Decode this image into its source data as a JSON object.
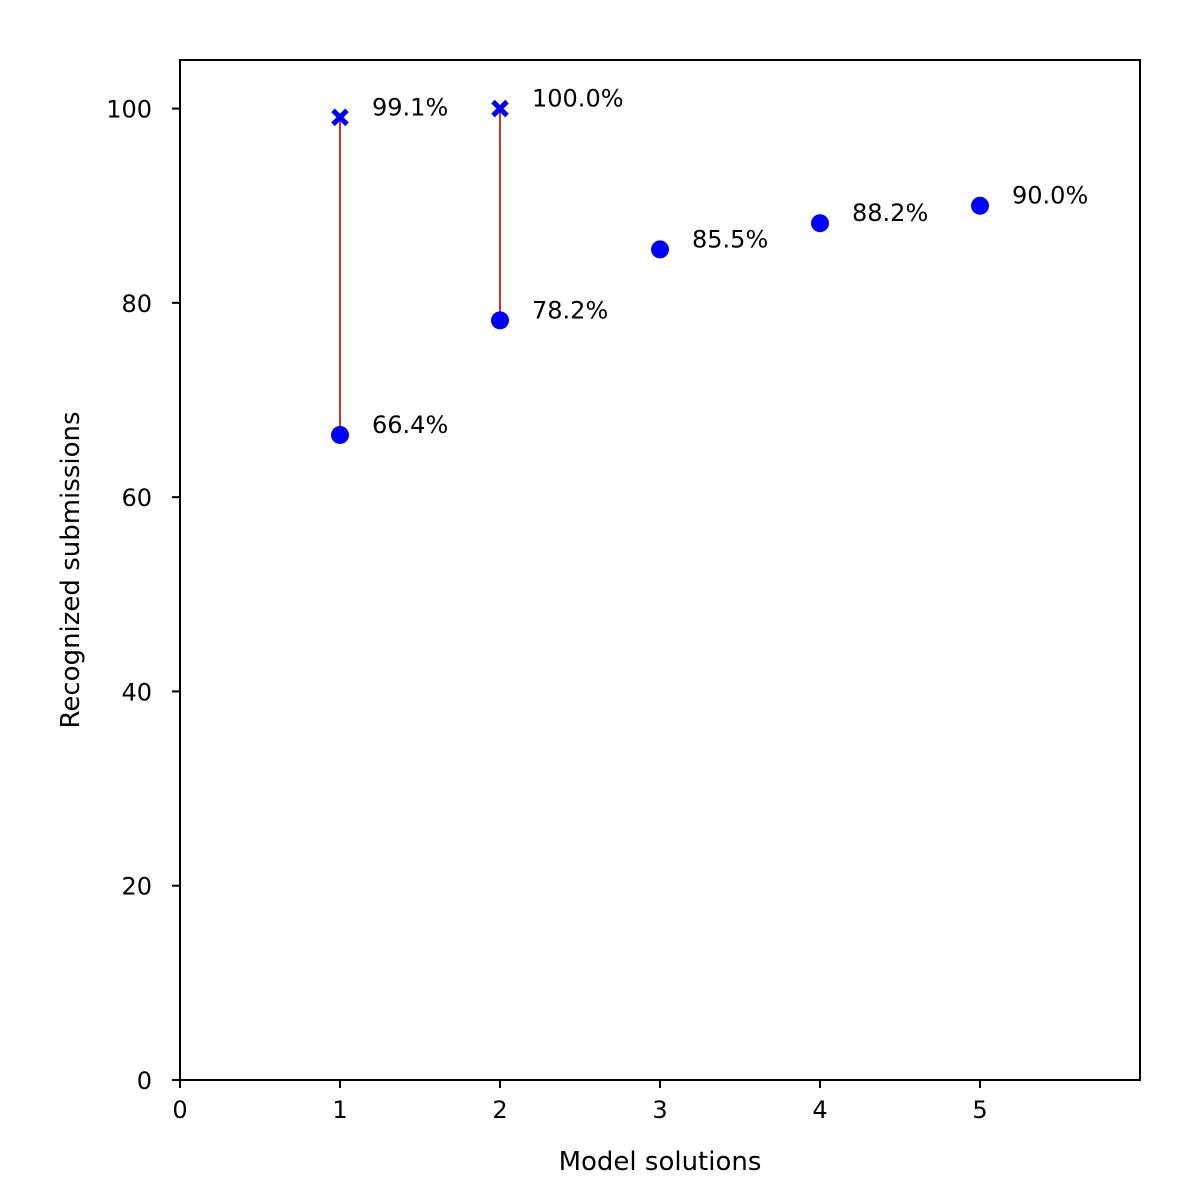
{
  "chart_data": {
    "type": "scatter",
    "title": "",
    "xlabel": "Model solutions",
    "ylabel": "Recognized submissions",
    "xlim": [
      0,
      6
    ],
    "ylim": [
      0,
      105
    ],
    "xticks": [
      0,
      1,
      2,
      3,
      4,
      5
    ],
    "yticks": [
      0,
      20,
      40,
      60,
      80,
      100
    ],
    "grid": false,
    "legend": "none",
    "colors": {
      "points": "#0000ff",
      "connector": "#c0392b",
      "axes": "#000000"
    },
    "series": [
      {
        "marker": "circle",
        "points": [
          {
            "x": 1,
            "y": 66.4,
            "label": "66.4%"
          },
          {
            "x": 2,
            "y": 78.2,
            "label": "78.2%"
          },
          {
            "x": 3,
            "y": 85.5,
            "label": "85.5%"
          },
          {
            "x": 4,
            "y": 88.2,
            "label": "88.2%"
          },
          {
            "x": 5,
            "y": 90.0,
            "label": "90.0%"
          }
        ]
      },
      {
        "marker": "x",
        "points": [
          {
            "x": 1,
            "y": 99.1,
            "label": "99.1%"
          },
          {
            "x": 2,
            "y": 100.0,
            "label": "100.0%"
          }
        ]
      }
    ],
    "connectors": [
      {
        "x": 1,
        "y_from": 66.4,
        "y_to": 99.1
      },
      {
        "x": 2,
        "y_from": 78.2,
        "y_to": 100.0
      }
    ]
  }
}
